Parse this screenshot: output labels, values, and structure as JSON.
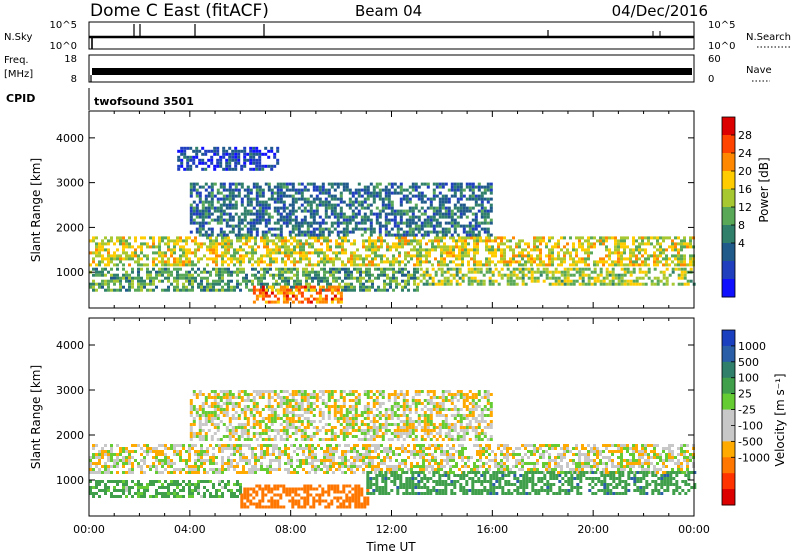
{
  "header": {
    "station": "Dome C East (fitACF)",
    "beam": "Beam 04",
    "date": "04/Dec/2016"
  },
  "status_panels": {
    "nsky_label": "N.Sky",
    "nsky_ticks": [
      "10^5",
      "10^0"
    ],
    "nsearch_label": "N.Search",
    "freq_label_line1": "Freq.",
    "freq_label_line2": "[MHz]",
    "freq_ticks": [
      "18",
      "8"
    ],
    "nave_label": "Nave",
    "nave_ticks": [
      "60",
      "0"
    ],
    "cpid_label": "CPID",
    "cpid_value": "twofsound 3501"
  },
  "chart_data": [
    {
      "type": "heatmap",
      "name": "power",
      "ylabel": "Slant Range [km]",
      "yticks": [
        1000,
        2000,
        3000,
        4000
      ],
      "ylim": [
        200,
        4600
      ],
      "xlim": [
        0,
        24
      ],
      "colorbar": {
        "label": "Power [dB]",
        "ticks": [
          "28",
          "24",
          "20",
          "16",
          "12",
          "8",
          "4"
        ],
        "colors": [
          "#dd0000",
          "#ff4400",
          "#ff8800",
          "#ffcc00",
          "#a8c832",
          "#58a858",
          "#2f7f6a",
          "#1f5a8a",
          "#1f3fbf",
          "#1010ff"
        ]
      },
      "bands": [
        {
          "x": [
            0,
            24
          ],
          "y": [
            1150,
            1800
          ],
          "value": 20
        },
        {
          "x": [
            0,
            13
          ],
          "y": [
            600,
            1100
          ],
          "value": 14
        },
        {
          "x": [
            6.5,
            10
          ],
          "y": [
            350,
            700
          ],
          "value": 26
        },
        {
          "x": [
            13,
            24
          ],
          "y": [
            700,
            1100
          ],
          "value": 18
        },
        {
          "x": [
            4,
            16
          ],
          "y": [
            1800,
            3000
          ],
          "value": 10
        },
        {
          "x": [
            3.5,
            7.5
          ],
          "y": [
            3300,
            3800
          ],
          "value": 6
        }
      ]
    },
    {
      "type": "heatmap",
      "name": "velocity",
      "ylabel": "Slant Range [km]",
      "xlabel": "Time UT",
      "yticks": [
        1000,
        2000,
        3000,
        4000
      ],
      "ylim": [
        200,
        4600
      ],
      "xlim": [
        0,
        24
      ],
      "xticks": [
        "00:00",
        "04:00",
        "08:00",
        "12:00",
        "16:00",
        "20:00",
        "00:00"
      ],
      "colorbar": {
        "label": "Velocity [m s⁻¹]",
        "ticks": [
          "1000",
          "500",
          "100",
          "25",
          "-25",
          "-100",
          "-500",
          "-1000"
        ],
        "colors": [
          "#1a3fbf",
          "#2a5fa8",
          "#2f7f6a",
          "#3f9f4a",
          "#66cc33",
          "#c8c8c8",
          "#c8c8c8",
          "#ffaa00",
          "#ff7700",
          "#ff3300",
          "#dd0000"
        ]
      },
      "bands": [
        {
          "x": [
            0,
            24
          ],
          "y": [
            1150,
            1800
          ],
          "value": 0
        },
        {
          "x": [
            0,
            6
          ],
          "y": [
            600,
            1000
          ],
          "value": 80
        },
        {
          "x": [
            6,
            11
          ],
          "y": [
            400,
            900
          ],
          "value": -300
        },
        {
          "x": [
            11,
            24
          ],
          "y": [
            700,
            1200
          ],
          "value": 250
        },
        {
          "x": [
            4,
            16
          ],
          "y": [
            1900,
            3000
          ],
          "value": 0
        }
      ]
    }
  ]
}
